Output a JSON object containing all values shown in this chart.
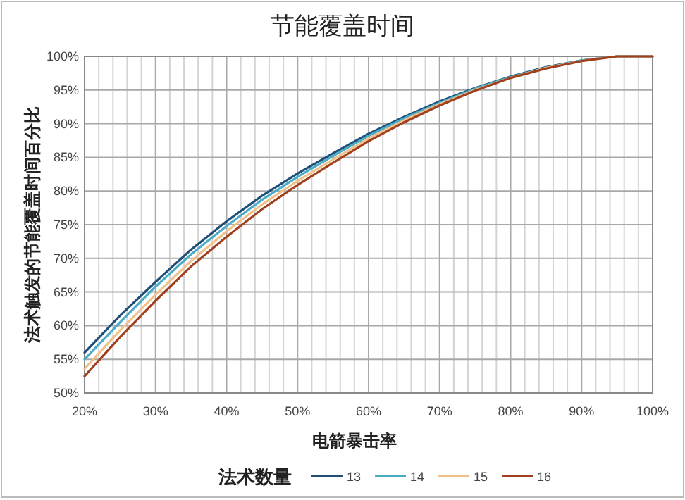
{
  "chart_data": {
    "type": "line",
    "title": "节能覆盖时间",
    "xlabel": "电箭暴击率",
    "ylabel": "法术触发的节能覆盖时间百分比",
    "legend_title": "法术数量",
    "legend": "bottom",
    "grid": true,
    "marker": "none",
    "line_style": "solid",
    "x": [
      20,
      25,
      30,
      35,
      40,
      45,
      50,
      55,
      60,
      65,
      70,
      75,
      80,
      85,
      90,
      95,
      100
    ],
    "xlim": [
      20,
      100
    ],
    "ylim": [
      50,
      100
    ],
    "xticks": [
      {
        "value": 20,
        "label": "20%"
      },
      {
        "value": 22,
        "label": null
      },
      {
        "value": 24,
        "label": null
      },
      {
        "value": 26,
        "label": null
      },
      {
        "value": 28,
        "label": null
      },
      {
        "value": 30,
        "label": "30%"
      },
      {
        "value": 32,
        "label": null
      },
      {
        "value": 34,
        "label": null
      },
      {
        "value": 36,
        "label": null
      },
      {
        "value": 38,
        "label": null
      },
      {
        "value": 40,
        "label": "40%"
      },
      {
        "value": 42,
        "label": null
      },
      {
        "value": 44,
        "label": null
      },
      {
        "value": 46,
        "label": null
      },
      {
        "value": 48,
        "label": null
      },
      {
        "value": 50,
        "label": "50%"
      },
      {
        "value": 52,
        "label": null
      },
      {
        "value": 54,
        "label": null
      },
      {
        "value": 56,
        "label": null
      },
      {
        "value": 58,
        "label": null
      },
      {
        "value": 60,
        "label": "60%"
      },
      {
        "value": 62,
        "label": null
      },
      {
        "value": 64,
        "label": null
      },
      {
        "value": 66,
        "label": null
      },
      {
        "value": 68,
        "label": null
      },
      {
        "value": 70,
        "label": "70%"
      },
      {
        "value": 72,
        "label": null
      },
      {
        "value": 74,
        "label": null
      },
      {
        "value": 76,
        "label": null
      },
      {
        "value": 78,
        "label": null
      },
      {
        "value": 80,
        "label": "80%"
      },
      {
        "value": 82,
        "label": null
      },
      {
        "value": 84,
        "label": null
      },
      {
        "value": 86,
        "label": null
      },
      {
        "value": 88,
        "label": null
      },
      {
        "value": 90,
        "label": "90%"
      },
      {
        "value": 92,
        "label": null
      },
      {
        "value": 94,
        "label": null
      },
      {
        "value": 96,
        "label": null
      },
      {
        "value": 98,
        "label": null
      },
      {
        "value": 100,
        "label": "100%"
      }
    ],
    "yticks": [
      {
        "value": 50,
        "label": "50%"
      },
      {
        "value": 55,
        "label": "55%"
      },
      {
        "value": 60,
        "label": "60%"
      },
      {
        "value": 65,
        "label": "65%"
      },
      {
        "value": 70,
        "label": "70%"
      },
      {
        "value": 75,
        "label": "75%"
      },
      {
        "value": 80,
        "label": "80%"
      },
      {
        "value": 85,
        "label": "85%"
      },
      {
        "value": 90,
        "label": "90%"
      },
      {
        "value": 95,
        "label": "95%"
      },
      {
        "value": 100,
        "label": "100%"
      }
    ],
    "series": [
      {
        "name": "13",
        "color": "#1f4e79",
        "values": [
          56,
          61.5,
          66.5,
          71.3,
          75.5,
          79.3,
          82.6,
          85.6,
          88.5,
          91,
          93.3,
          95.3,
          97,
          98.4,
          99.4,
          100,
          100
        ]
      },
      {
        "name": "14",
        "color": "#4bacc6",
        "values": [
          55,
          60.5,
          65.8,
          70.6,
          74.8,
          78.7,
          82.1,
          85.2,
          88.2,
          90.8,
          93.1,
          95.2,
          96.9,
          98.3,
          99.4,
          100,
          100
        ]
      },
      {
        "name": "15",
        "color": "#f2c18a",
        "values": [
          53.6,
          59.3,
          64.6,
          69.6,
          74,
          78,
          81.5,
          84.7,
          87.8,
          90.5,
          92.9,
          95,
          96.8,
          98.3,
          99.3,
          100,
          100
        ]
      },
      {
        "name": "16",
        "color": "#a0401e",
        "values": [
          52.5,
          58.3,
          63.7,
          68.8,
          73.2,
          77.3,
          80.9,
          84.2,
          87.4,
          90.2,
          92.7,
          94.9,
          96.8,
          98.2,
          99.3,
          100,
          100
        ]
      }
    ]
  }
}
